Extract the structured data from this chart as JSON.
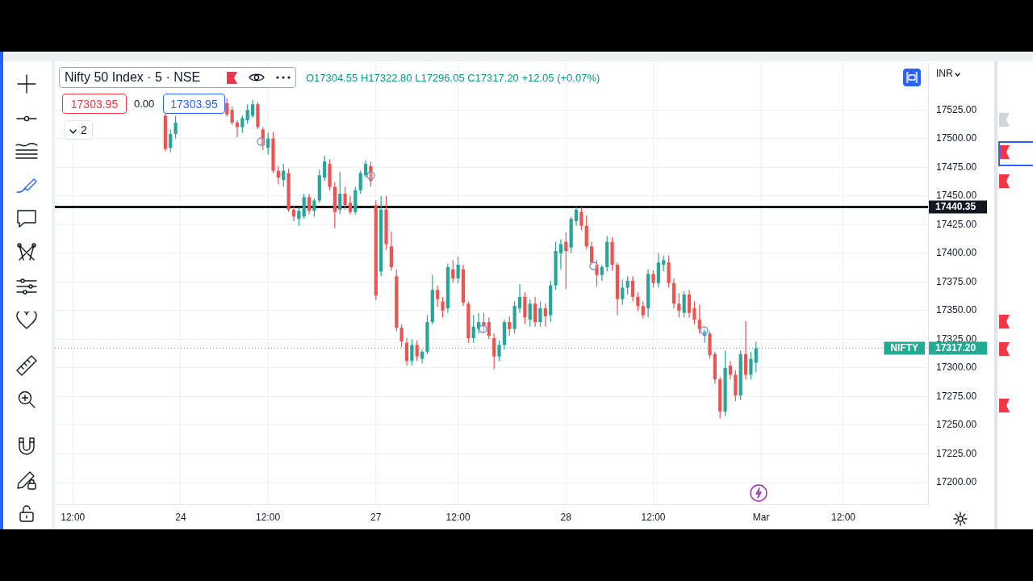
{
  "chart_data": {
    "type": "candlestick",
    "title": "Nifty 50 Index · 5 · NSE",
    "subtitle": "O17304.55 H17322.80 L17296.05 C17317.20 +12.05 (+0.07%)",
    "annotations": [
      "17303.95",
      "0.00",
      "17303.95",
      "2",
      "INR",
      {
        "text": "NIFTY",
        "y": 17317.2
      }
    ],
    "categories": [
      null,
      null,
      null,
      "12:00",
      null,
      null,
      null,
      null,
      null,
      null,
      null,
      null,
      null,
      null,
      null,
      null,
      null,
      null,
      null,
      null,
      null,
      null,
      null,
      null,
      "24",
      null,
      null,
      null,
      null,
      null,
      null,
      null,
      null,
      null,
      null,
      null,
      null,
      null,
      null,
      null,
      null,
      "12:00",
      null,
      null,
      null,
      null,
      null,
      null,
      null,
      null,
      null,
      null,
      null,
      null,
      null,
      null,
      null,
      null,
      null,
      null,
      null,
      null,
      "27",
      null,
      null,
      null,
      null,
      null,
      null,
      null,
      null,
      null,
      null,
      null,
      null,
      null,
      null,
      null,
      "12:00",
      null,
      null,
      null,
      null,
      null,
      null,
      null,
      null,
      null,
      null,
      null,
      null,
      null,
      null,
      null,
      null,
      null,
      null,
      null,
      null,
      "28",
      null,
      null,
      null,
      null,
      null,
      null,
      null,
      null,
      null,
      null,
      null,
      null,
      null,
      null,
      null,
      null,
      "12:00",
      null,
      null,
      null,
      null,
      null,
      null,
      null,
      null,
      null,
      null,
      null,
      null,
      null,
      null,
      null,
      null,
      null,
      null,
      null,
      null,
      "Mar",
      null,
      null,
      null,
      null,
      null,
      null,
      null,
      null,
      null,
      null,
      null,
      null,
      null,
      null,
      null,
      "12:00",
      null,
      null,
      null,
      null,
      null,
      null,
      null,
      null,
      null,
      null,
      null,
      null,
      null,
      null,
      null,
      null
    ],
    "ohlc": [
      null,
      null,
      null,
      null,
      null,
      null,
      null,
      null,
      null,
      null,
      null,
      null,
      null,
      null,
      null,
      null,
      null,
      null,
      null,
      null,
      null,
      [
        17520,
        17522,
        17489,
        17491
      ],
      [
        17492,
        17508,
        17488,
        17504
      ],
      [
        17504,
        17520,
        17500,
        17514
      ],
      null,
      null,
      null,
      null,
      null,
      null,
      null,
      null,
      null,
      [
        17531,
        17535,
        17519,
        17521
      ],
      [
        17525,
        17528,
        17512,
        17514
      ],
      [
        17514,
        17516,
        17501,
        17510
      ],
      [
        17510,
        17520,
        17505,
        17518
      ],
      [
        17516,
        17530,
        17513,
        17525
      ],
      [
        17520,
        17534,
        17518,
        17530
      ],
      [
        17530,
        17532,
        17508,
        17510
      ],
      [
        17508,
        17510,
        17490,
        17494
      ],
      [
        17492,
        17505,
        17486,
        17500
      ],
      [
        17500,
        17506,
        17470,
        17472
      ],
      [
        17472,
        17476,
        17460,
        17466
      ],
      [
        17464,
        17478,
        17458,
        17472
      ],
      [
        17470,
        17474,
        17436,
        17438
      ],
      [
        17438,
        17442,
        17428,
        17432
      ],
      [
        17430,
        17440,
        17424,
        17437
      ],
      [
        17432,
        17452,
        17430,
        17449
      ],
      [
        17449,
        17452,
        17434,
        17437
      ],
      [
        17437,
        17448,
        17432,
        17446
      ],
      [
        17446,
        17473,
        17444,
        17468
      ],
      [
        17466,
        17485,
        17463,
        17480
      ],
      [
        17478,
        17482,
        17455,
        17458
      ],
      [
        17458,
        17462,
        17422,
        17436
      ],
      [
        17438,
        17471,
        17434,
        17452
      ],
      [
        17452,
        17458,
        17438,
        17442
      ],
      [
        17444,
        17450,
        17434,
        17436
      ],
      [
        17436,
        17458,
        17434,
        17455
      ],
      [
        17455,
        17472,
        17452,
        17470
      ],
      [
        17468,
        17481,
        17466,
        17478
      ],
      [
        17476,
        17480,
        17458,
        17463
      ],
      [
        17442,
        17446,
        17359,
        17363
      ],
      [
        17384,
        17450,
        17380,
        17438
      ],
      [
        17438,
        17450,
        17403,
        17408
      ],
      [
        17406,
        17419,
        17385,
        17388
      ],
      [
        17380,
        17386,
        17332,
        17335
      ],
      [
        17335,
        17338,
        17318,
        17323
      ],
      [
        17322,
        17326,
        17302,
        17306
      ],
      [
        17306,
        17325,
        17302,
        17320
      ],
      [
        17320,
        17324,
        17306,
        17310
      ],
      [
        17308,
        17316,
        17304,
        17314
      ],
      [
        17314,
        17346,
        17312,
        17340
      ],
      [
        17340,
        17381,
        17338,
        17368
      ],
      [
        17368,
        17372,
        17353,
        17360
      ],
      [
        17358,
        17362,
        17344,
        17350
      ],
      [
        17352,
        17391,
        17348,
        17388
      ],
      [
        17386,
        17394,
        17374,
        17378
      ],
      [
        17378,
        17397,
        17374,
        17390
      ],
      [
        17386,
        17390,
        17354,
        17357
      ],
      [
        17356,
        17358,
        17322,
        17326
      ],
      [
        17326,
        17346,
        17322,
        17336
      ],
      [
        17334,
        17348,
        17330,
        17340
      ],
      [
        17340,
        17348,
        17332,
        17336
      ],
      [
        17340,
        17344,
        17325,
        17328
      ],
      [
        17326,
        17330,
        17299,
        17310
      ],
      [
        17310,
        17324,
        17306,
        17320
      ],
      [
        17320,
        17342,
        17316,
        17340
      ],
      [
        17340,
        17345,
        17328,
        17334
      ],
      [
        17334,
        17358,
        17330,
        17354
      ],
      [
        17352,
        17373,
        17348,
        17362
      ],
      [
        17362,
        17366,
        17338,
        17344
      ],
      [
        17342,
        17360,
        17336,
        17356
      ],
      [
        17356,
        17362,
        17336,
        17340
      ],
      [
        17340,
        17358,
        17336,
        17352
      ],
      [
        17352,
        17356,
        17336,
        17345
      ],
      [
        17346,
        17376,
        17340,
        17372
      ],
      [
        17372,
        17410,
        17368,
        17402
      ],
      [
        17400,
        17412,
        17386,
        17408
      ],
      [
        17410,
        17418,
        17369,
        17402
      ],
      [
        17405,
        17432,
        17400,
        17430
      ],
      [
        17428,
        17440.35,
        17424,
        17438
      ],
      [
        17436,
        17440,
        17420,
        17424
      ],
      [
        17424,
        17433,
        17404,
        17406
      ],
      [
        17406,
        17410,
        17390,
        17392
      ],
      [
        17390,
        17394,
        17371,
        17381
      ],
      [
        17381,
        17390,
        17376,
        17388
      ],
      [
        17388,
        17415,
        17384,
        17410
      ],
      [
        17410,
        17414,
        17385,
        17390
      ],
      [
        17390,
        17392,
        17346,
        17360
      ],
      [
        17360,
        17377,
        17355,
        17370
      ],
      [
        17370,
        17380,
        17364,
        17376
      ],
      [
        17376,
        17380,
        17358,
        17362
      ],
      [
        17362,
        17366,
        17350,
        17354
      ],
      [
        17354,
        17358,
        17343,
        17346
      ],
      [
        17352,
        17386,
        17344,
        17382
      ],
      [
        17382,
        17385,
        17370,
        17374
      ],
      [
        17374,
        17400,
        17370,
        17392
      ],
      [
        17390,
        17398,
        17384,
        17394
      ],
      [
        17392,
        17398,
        17370,
        17374
      ],
      [
        17374,
        17378,
        17352,
        17356
      ],
      [
        17356,
        17365,
        17344,
        17350
      ],
      [
        17348,
        17367,
        17344,
        17364
      ],
      [
        17364,
        17368,
        17344,
        17348
      ],
      [
        17352,
        17358,
        17338,
        17342
      ],
      [
        17342,
        17355,
        17330,
        17334
      ],
      [
        17328,
        17334,
        17322,
        17332
      ],
      [
        17330,
        17332,
        17308,
        17311
      ],
      [
        17312,
        17314,
        17286,
        17290
      ],
      [
        17290,
        17292,
        17256,
        17262
      ],
      [
        17262,
        17315,
        17258,
        17300
      ],
      [
        17302,
        17306,
        17290,
        17294
      ],
      [
        17294,
        17298,
        17271,
        17276
      ],
      [
        17276,
        17315,
        17272,
        17312
      ],
      [
        17312,
        17341,
        17290,
        17294
      ],
      [
        17294,
        17314,
        17290,
        17308
      ],
      [
        17304.55,
        17322.8,
        17296.05,
        17317.2
      ],
      null,
      null,
      null,
      null,
      null,
      null,
      null,
      null,
      null,
      null,
      null,
      null,
      null,
      null,
      null,
      null,
      null,
      null,
      null,
      null,
      null,
      null,
      null,
      null,
      null,
      null,
      null,
      null,
      null,
      null,
      null,
      null,
      null
    ],
    "colors": [
      null,
      null,
      null,
      null,
      null,
      null,
      null,
      null,
      null,
      null,
      null,
      null,
      null,
      null,
      null,
      null,
      null,
      null,
      null,
      null,
      null,
      "#ef5350",
      "#26a69a",
      "#26a69a",
      null,
      null,
      null,
      null,
      null,
      null,
      null,
      null,
      null,
      "#ef5350",
      "#ef5350",
      "#ef5350",
      "#26a69a",
      "#26a69a",
      "#26a69a",
      "#ef5350",
      "#ef5350",
      "#26a69a",
      "#ef5350",
      "#ef5350",
      "#26a69a",
      "#ef5350",
      "#ef5350",
      "#26a69a",
      "#26a69a",
      "#ef5350",
      "#26a69a",
      "#26a69a",
      "#26a69a",
      "#ef5350",
      "#ef5350",
      "#26a69a",
      "#ef5350",
      "#ef5350",
      "#26a69a",
      "#26a69a",
      "#26a69a",
      "#ef5350",
      "#ef5350",
      "#26a69a",
      "#ef5350",
      "#ef5350",
      "#ef5350",
      "#ef5350",
      "#ef5350",
      "#26a69a",
      "#ef5350",
      "#26a69a",
      "#26a69a",
      "#26a69a",
      "#ef5350",
      "#ef5350",
      "#26a69a",
      "#ef5350",
      "#26a69a",
      "#ef5350",
      "#ef5350",
      "#26a69a",
      "#26a69a",
      "#ef5350",
      "#ef5350",
      "#ef5350",
      "#26a69a",
      "#26a69a",
      "#ef5350",
      "#26a69a",
      "#26a69a",
      "#ef5350",
      "#26a69a",
      "#ef5350",
      "#26a69a",
      "#ef5350",
      "#26a69a",
      "#26a69a",
      "#26a69a",
      "#ef5350",
      "#26a69a",
      "#26a69a",
      "#ef5350",
      "#ef5350",
      "#ef5350",
      "#ef5350",
      "#26a69a",
      "#26a69a",
      "#ef5350",
      "#ef5350",
      "#26a69a",
      "#26a69a",
      "#ef5350",
      "#ef5350",
      "#ef5350",
      "#26a69a",
      "#ef5350",
      "#26a69a",
      "#26a69a",
      "#ef5350",
      "#ef5350",
      "#ef5350",
      "#26a69a",
      "#ef5350",
      "#ef5350",
      "#ef5350",
      "#26a69a",
      "#ef5350",
      "#ef5350",
      "#ef5350",
      "#26a69a",
      "#ef5350",
      "#ef5350",
      "#26a69a",
      "#ef5350",
      "#26a69a",
      "#26a69a",
      null,
      null,
      null,
      null,
      null,
      null,
      null,
      null,
      null,
      null,
      null,
      null,
      null,
      null,
      null,
      null,
      null,
      null,
      null,
      null,
      null,
      null,
      null,
      null,
      null,
      null,
      null,
      null,
      null,
      null,
      null,
      null,
      null
    ],
    "ylim": [
      17181,
      17566
    ],
    "yticks": [
      {
        "value": 17200,
        "label": "17200.00"
      },
      {
        "value": 17225,
        "label": "17225.00"
      },
      {
        "value": 17250,
        "label": "17250.00"
      },
      {
        "value": 17275,
        "label": "17275.00"
      },
      {
        "value": 17300,
        "label": "17300.00"
      },
      {
        "value": 17325,
        "label": "17325.00"
      },
      {
        "value": 17350,
        "label": "17350.00"
      },
      {
        "value": 17375,
        "label": "17375.00"
      },
      {
        "value": 17400,
        "label": "17400.00"
      },
      {
        "value": 17425,
        "label": "17425.00"
      },
      {
        "value": 17450,
        "label": "17450.00"
      },
      {
        "value": 17475,
        "label": "17475.00"
      },
      {
        "value": 17500,
        "label": "17500.00"
      },
      {
        "value": 17525,
        "label": "17525.00"
      }
    ],
    "grid": true,
    "ref_lines": [
      {
        "axis": "y",
        "value": 17440.35,
        "label": "17440.35",
        "color": "#131722",
        "line_style": "solid"
      },
      {
        "axis": "y",
        "value": 17317.2,
        "label": "17317.20",
        "color": "#22ab94",
        "line_style": "dotted"
      }
    ]
  }
}
